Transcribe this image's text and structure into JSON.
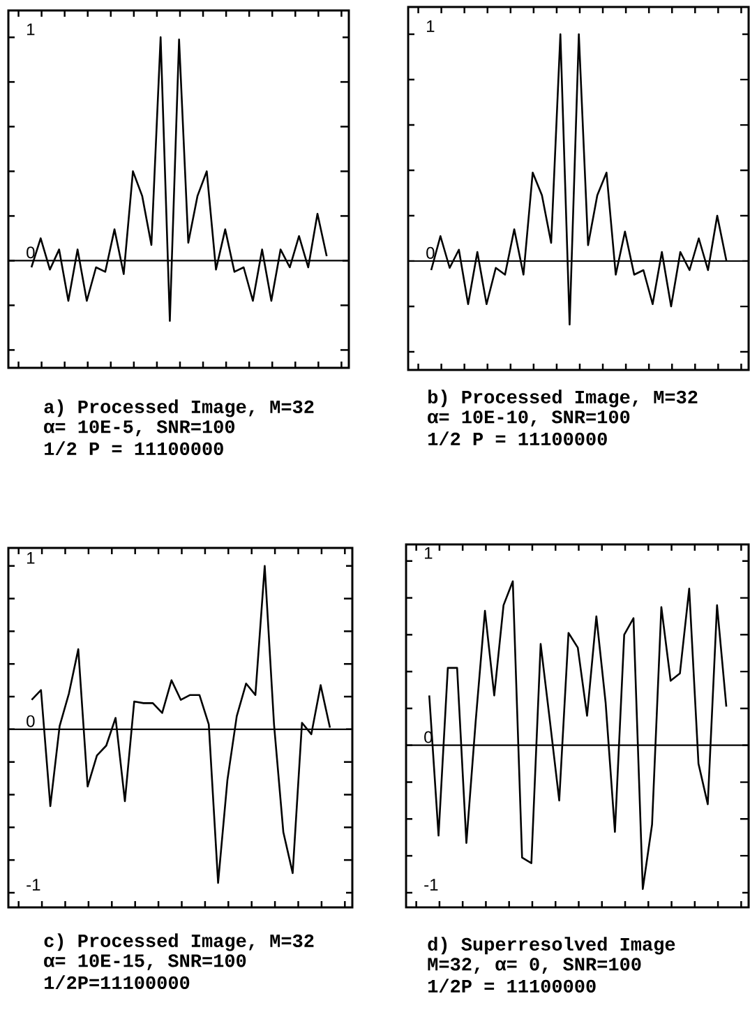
{
  "chart_data": [
    {
      "type": "line",
      "categories": [
        null,
        null,
        null,
        null,
        null,
        null,
        null,
        null,
        null,
        null,
        null,
        null,
        null,
        null,
        null,
        null,
        null,
        null,
        null,
        null,
        null,
        null,
        null,
        null,
        null,
        null,
        null,
        null,
        null,
        null,
        null,
        null,
        null
      ],
      "series": [
        {
          "color": "#000000",
          "values": [
            -0.03,
            0.1,
            -0.04,
            0.05,
            -0.18,
            0.05,
            -0.18,
            -0.03,
            -0.05,
            0.14,
            -0.06,
            0.4,
            0.29,
            0.07,
            1.0,
            -0.27,
            0.99,
            0.08,
            0.29,
            0.4,
            -0.04,
            0.14,
            -0.05,
            -0.03,
            -0.18,
            0.05,
            -0.18,
            0.05,
            -0.03,
            0.11,
            -0.03,
            0.21,
            0.02
          ]
        }
      ],
      "ylim": [
        -0.48,
        1.12
      ],
      "yticks": [
        0,
        1
      ],
      "tick_labels": "y",
      "ref_lines": [
        {
          "axis": "y",
          "value": 0
        }
      ],
      "annotations": [
        "a) Processed Image, M=32",
        "α= 10E-5, SNR=100",
        "1/2 P = 11100000"
      ]
    },
    {
      "type": "line",
      "categories": [
        null,
        null,
        null,
        null,
        null,
        null,
        null,
        null,
        null,
        null,
        null,
        null,
        null,
        null,
        null,
        null,
        null,
        null,
        null,
        null,
        null,
        null,
        null,
        null,
        null,
        null,
        null,
        null,
        null,
        null,
        null,
        null,
        null
      ],
      "series": [
        {
          "color": "#000000",
          "values": [
            -0.04,
            0.11,
            -0.03,
            0.05,
            -0.19,
            0.04,
            -0.19,
            -0.03,
            -0.06,
            0.14,
            -0.06,
            0.39,
            0.29,
            0.08,
            1.0,
            -0.28,
            1.0,
            0.07,
            0.29,
            0.39,
            -0.06,
            0.13,
            -0.06,
            -0.04,
            -0.19,
            0.04,
            -0.2,
            0.04,
            -0.04,
            0.1,
            -0.04,
            0.2,
            0.0
          ]
        }
      ],
      "ylim": [
        -0.48,
        1.12
      ],
      "yticks": [
        0,
        1
      ],
      "tick_labels": "y",
      "ref_lines": [
        {
          "axis": "y",
          "value": 0
        }
      ],
      "annotations": [
        "b) Processed Image, M=32",
        "α= 10E-10, SNR=100",
        "1/2 P = 11100000"
      ]
    },
    {
      "type": "line",
      "categories": [
        null,
        null,
        null,
        null,
        null,
        null,
        null,
        null,
        null,
        null,
        null,
        null,
        null,
        null,
        null,
        null,
        null,
        null,
        null,
        null,
        null,
        null,
        null,
        null,
        null,
        null,
        null,
        null,
        null,
        null,
        null,
        null,
        null
      ],
      "series": [
        {
          "color": "#000000",
          "values": [
            0.18,
            0.24,
            -0.47,
            0.02,
            0.22,
            0.49,
            -0.35,
            -0.16,
            -0.1,
            0.07,
            -0.44,
            0.17,
            0.16,
            0.16,
            0.1,
            0.3,
            0.18,
            0.21,
            0.21,
            0.03,
            -0.94,
            -0.31,
            0.08,
            0.28,
            0.21,
            1.0,
            0.03,
            -0.63,
            -0.88,
            0.04,
            -0.03,
            0.27,
            0.01
          ]
        }
      ],
      "ylim": [
        -1.09,
        1.11
      ],
      "yticks": [
        -1,
        0,
        1
      ],
      "tick_labels": "y",
      "ref_lines": [
        {
          "axis": "y",
          "value": 0
        }
      ],
      "annotations": [
        "c)  Processed Image, M=32",
        "α= 10E-15, SNR=100",
        "1/2P=11100000"
      ]
    },
    {
      "type": "line",
      "categories": [
        null,
        null,
        null,
        null,
        null,
        null,
        null,
        null,
        null,
        null,
        null,
        null,
        null,
        null,
        null,
        null,
        null,
        null,
        null,
        null,
        null,
        null,
        null,
        null,
        null,
        null,
        null,
        null,
        null,
        null,
        null,
        null,
        null
      ],
      "series": [
        {
          "color": "#000000",
          "values": [
            0.27,
            -0.49,
            0.42,
            0.42,
            -0.53,
            0.13,
            0.73,
            0.27,
            0.76,
            0.89,
            -0.61,
            -0.64,
            0.55,
            0.13,
            -0.3,
            0.61,
            0.53,
            0.16,
            0.7,
            0.23,
            -0.47,
            0.6,
            0.69,
            -0.78,
            -0.43,
            0.75,
            0.35,
            0.39,
            0.85,
            -0.1,
            -0.32,
            0.76,
            0.21
          ]
        }
      ],
      "ylim": [
        -0.88,
        1.09
      ],
      "yticks": [
        {
          "value": -0.8,
          "label": "-1"
        },
        0,
        1
      ],
      "tick_labels": "y",
      "ref_lines": [
        {
          "axis": "y",
          "value": 0
        }
      ],
      "annotations": [
        "d)  Superresolved Image",
        "M=32, α= 0, SNR=100",
        "1/2P = 11100000"
      ]
    }
  ]
}
